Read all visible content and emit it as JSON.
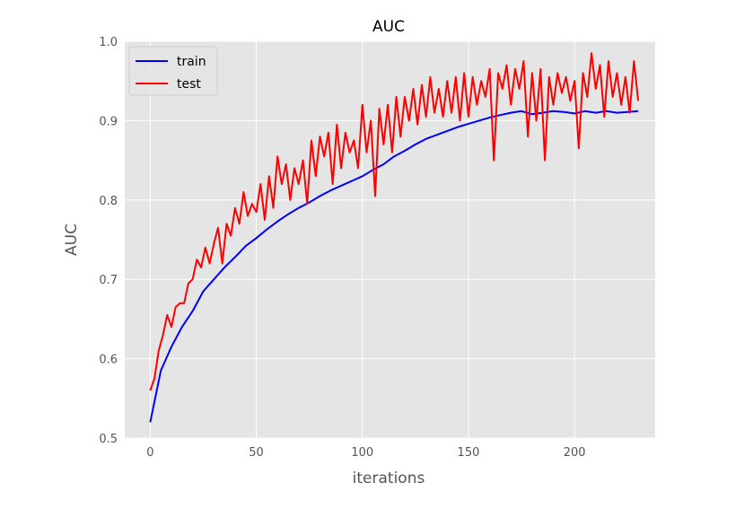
{
  "chart_data": {
    "type": "line",
    "title": "AUC",
    "xlabel": "iterations",
    "ylabel": "AUC",
    "xlim": [
      -12,
      238
    ],
    "ylim": [
      0.5,
      1.0
    ],
    "xticks": [
      0,
      50,
      100,
      150,
      200
    ],
    "yticks": [
      0.5,
      0.6,
      0.7,
      0.8,
      0.9,
      1.0
    ],
    "ytick_labels": [
      "0.5",
      "0.6",
      "0.7",
      "0.8",
      "0.9",
      "1.0"
    ],
    "grid": true,
    "legend_position": "top-left",
    "series": [
      {
        "name": "train",
        "color": "#0000ff",
        "x": [
          0,
          5,
          10,
          15,
          20,
          25,
          30,
          35,
          40,
          45,
          50,
          55,
          60,
          65,
          70,
          75,
          80,
          85,
          90,
          95,
          100,
          105,
          110,
          115,
          120,
          125,
          130,
          135,
          140,
          145,
          150,
          155,
          160,
          165,
          170,
          175,
          180,
          185,
          190,
          195,
          200,
          205,
          210,
          215,
          220,
          225,
          230
        ],
        "y": [
          0.52,
          0.585,
          0.615,
          0.64,
          0.66,
          0.685,
          0.7,
          0.715,
          0.728,
          0.742,
          0.752,
          0.763,
          0.773,
          0.782,
          0.79,
          0.797,
          0.805,
          0.812,
          0.818,
          0.824,
          0.83,
          0.838,
          0.845,
          0.855,
          0.862,
          0.87,
          0.877,
          0.882,
          0.887,
          0.892,
          0.896,
          0.9,
          0.904,
          0.907,
          0.91,
          0.912,
          0.908,
          0.91,
          0.912,
          0.911,
          0.909,
          0.912,
          0.91,
          0.912,
          0.91,
          0.911,
          0.912
        ]
      },
      {
        "name": "test",
        "color": "#ff0000",
        "x": [
          0,
          2,
          4,
          6,
          8,
          10,
          12,
          14,
          16,
          18,
          20,
          22,
          24,
          26,
          28,
          30,
          32,
          34,
          36,
          38,
          40,
          42,
          44,
          46,
          48,
          50,
          52,
          54,
          56,
          58,
          60,
          62,
          64,
          66,
          68,
          70,
          72,
          74,
          76,
          78,
          80,
          82,
          84,
          86,
          88,
          90,
          92,
          94,
          96,
          98,
          100,
          102,
          104,
          106,
          108,
          110,
          112,
          114,
          116,
          118,
          120,
          122,
          124,
          126,
          128,
          130,
          132,
          134,
          136,
          138,
          140,
          142,
          144,
          146,
          148,
          150,
          152,
          154,
          156,
          158,
          160,
          162,
          164,
          166,
          168,
          170,
          172,
          174,
          176,
          178,
          180,
          182,
          184,
          186,
          188,
          190,
          192,
          194,
          196,
          198,
          200,
          202,
          204,
          206,
          208,
          210,
          212,
          214,
          216,
          218,
          220,
          222,
          224,
          226,
          228,
          230
        ],
        "y": [
          0.56,
          0.575,
          0.61,
          0.63,
          0.655,
          0.64,
          0.665,
          0.67,
          0.67,
          0.695,
          0.7,
          0.725,
          0.715,
          0.74,
          0.72,
          0.745,
          0.765,
          0.72,
          0.77,
          0.755,
          0.79,
          0.77,
          0.81,
          0.78,
          0.795,
          0.785,
          0.82,
          0.775,
          0.83,
          0.79,
          0.855,
          0.82,
          0.845,
          0.8,
          0.84,
          0.82,
          0.85,
          0.795,
          0.875,
          0.83,
          0.88,
          0.855,
          0.885,
          0.82,
          0.895,
          0.84,
          0.885,
          0.86,
          0.875,
          0.84,
          0.92,
          0.86,
          0.9,
          0.805,
          0.915,
          0.87,
          0.92,
          0.86,
          0.93,
          0.88,
          0.93,
          0.9,
          0.94,
          0.895,
          0.945,
          0.905,
          0.955,
          0.91,
          0.94,
          0.905,
          0.95,
          0.91,
          0.955,
          0.9,
          0.96,
          0.905,
          0.955,
          0.92,
          0.95,
          0.93,
          0.965,
          0.85,
          0.96,
          0.94,
          0.97,
          0.92,
          0.965,
          0.94,
          0.975,
          0.88,
          0.96,
          0.9,
          0.965,
          0.85,
          0.955,
          0.92,
          0.96,
          0.935,
          0.955,
          0.925,
          0.95,
          0.865,
          0.96,
          0.93,
          0.985,
          0.94,
          0.97,
          0.905,
          0.975,
          0.93,
          0.96,
          0.92,
          0.955,
          0.91,
          0.975,
          0.925
        ]
      }
    ]
  }
}
